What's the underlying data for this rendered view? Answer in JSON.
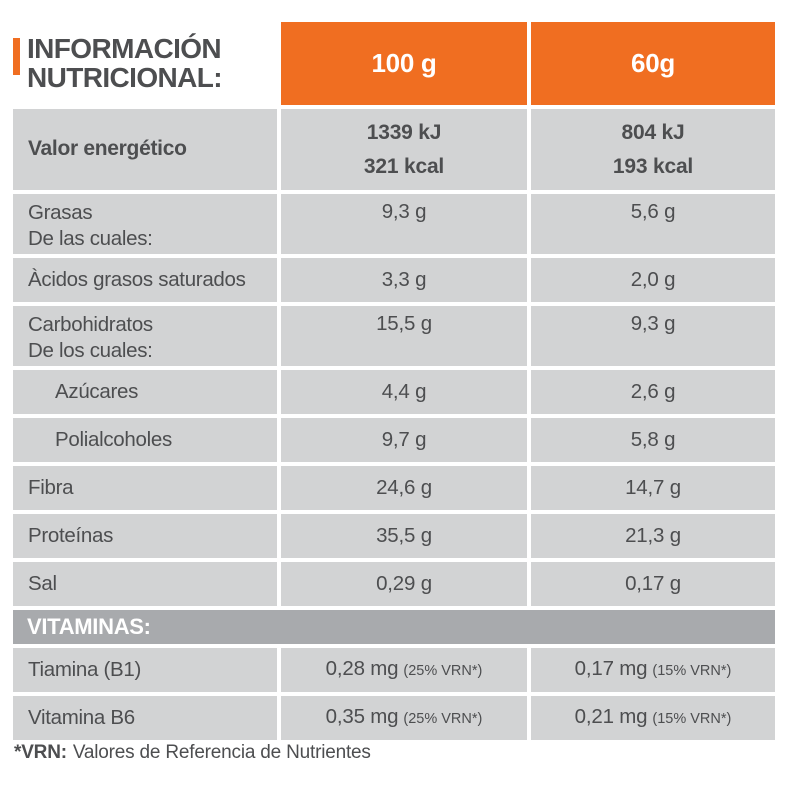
{
  "colors": {
    "orange": "#F06E21",
    "row_gray": "#D2D3D4",
    "band_gray": "#A8AAAD",
    "text": "#4D4E50"
  },
  "header": {
    "title_line1": "INFORMACIÓN",
    "title_line2": "NUTRICIONAL:",
    "col1": "100 g",
    "col2": "60g"
  },
  "energy": {
    "label": "Valor energético",
    "per100_kj": "1339 kJ",
    "per100_kcal": "321 kcal",
    "per60_kj": "804 kJ",
    "per60_kcal": "193 kcal"
  },
  "rows": [
    {
      "label": "Grasas",
      "label2": "De las cuales:",
      "per100": "9,3 g",
      "per60": "5,6 g",
      "indent": false
    },
    {
      "label": "Àcidos grasos saturados",
      "per100": "3,3 g",
      "per60": "2,0 g",
      "indent": false
    },
    {
      "label": "Carbohidratos",
      "label2": "De los cuales:",
      "per100": "15,5 g",
      "per60": "9,3 g",
      "indent": false
    },
    {
      "label": "Azúcares",
      "per100": "4,4 g",
      "per60": "2,6 g",
      "indent": true
    },
    {
      "label": "Polialcoholes",
      "per100": "9,7 g",
      "per60": "5,8 g",
      "indent": true
    },
    {
      "label": "Fibra",
      "per100": "24,6 g",
      "per60": "14,7 g",
      "indent": false
    },
    {
      "label": "Proteínas",
      "per100": "35,5 g",
      "per60": "21,3 g",
      "indent": false
    },
    {
      "label": "Sal",
      "per100": "0,29 g",
      "per60": "0,17 g",
      "indent": false
    }
  ],
  "vitamins": {
    "section_label": "VITAMINAS:",
    "rows": [
      {
        "label": "Tiamina (B1)",
        "per100": "0,28 mg",
        "per100_note": "(25% VRN*)",
        "per60": "0,17 mg",
        "per60_note": "(15% VRN*)"
      },
      {
        "label": "Vitamina B6",
        "per100": "0,35 mg",
        "per100_note": "(25% VRN*)",
        "per60": "0,21 mg",
        "per60_note": "(15% VRN*)"
      }
    ]
  },
  "footnote": {
    "prefix": "*VRN:",
    "text": "Valores de Referencia de Nutrientes"
  }
}
